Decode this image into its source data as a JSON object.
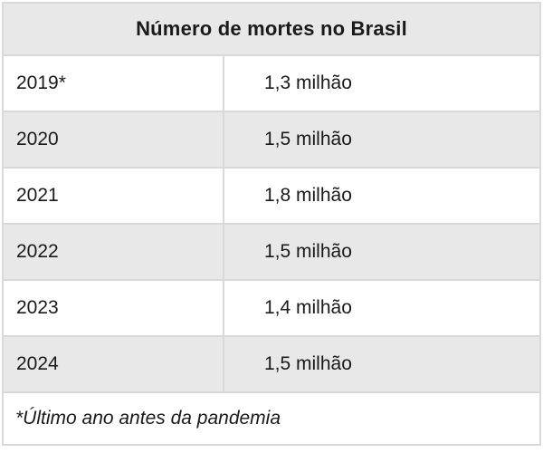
{
  "chart_data": {
    "type": "table",
    "title": "Número de mortes no Brasil",
    "categories": [
      "2019*",
      "2020",
      "2021",
      "2022",
      "2023",
      "2024"
    ],
    "values": [
      1.3,
      1.5,
      1.8,
      1.5,
      1.4,
      1.5
    ],
    "values_unit": "milhão",
    "footnote": "*Último ano antes da pandemia",
    "layout": {
      "header_bg": "#e8e8e8",
      "alt_row_bg": "#e8e8e8",
      "row_bg": "#ffffff",
      "border_color": "#d9d9d9",
      "text_color": "#1a1a1a",
      "striped": true
    }
  },
  "table": {
    "title": "Número de mortes no Brasil",
    "rows": [
      {
        "year": "2019*",
        "value": "1,3 milhão"
      },
      {
        "year": "2020",
        "value": "1,5 milhão"
      },
      {
        "year": "2021",
        "value": "1,8 milhão"
      },
      {
        "year": "2022",
        "value": "1,5 milhão"
      },
      {
        "year": "2023",
        "value": "1,4 milhão"
      },
      {
        "year": "2024",
        "value": "1,5 milhão"
      }
    ],
    "footnote": "*Último ano antes da pandemia"
  }
}
